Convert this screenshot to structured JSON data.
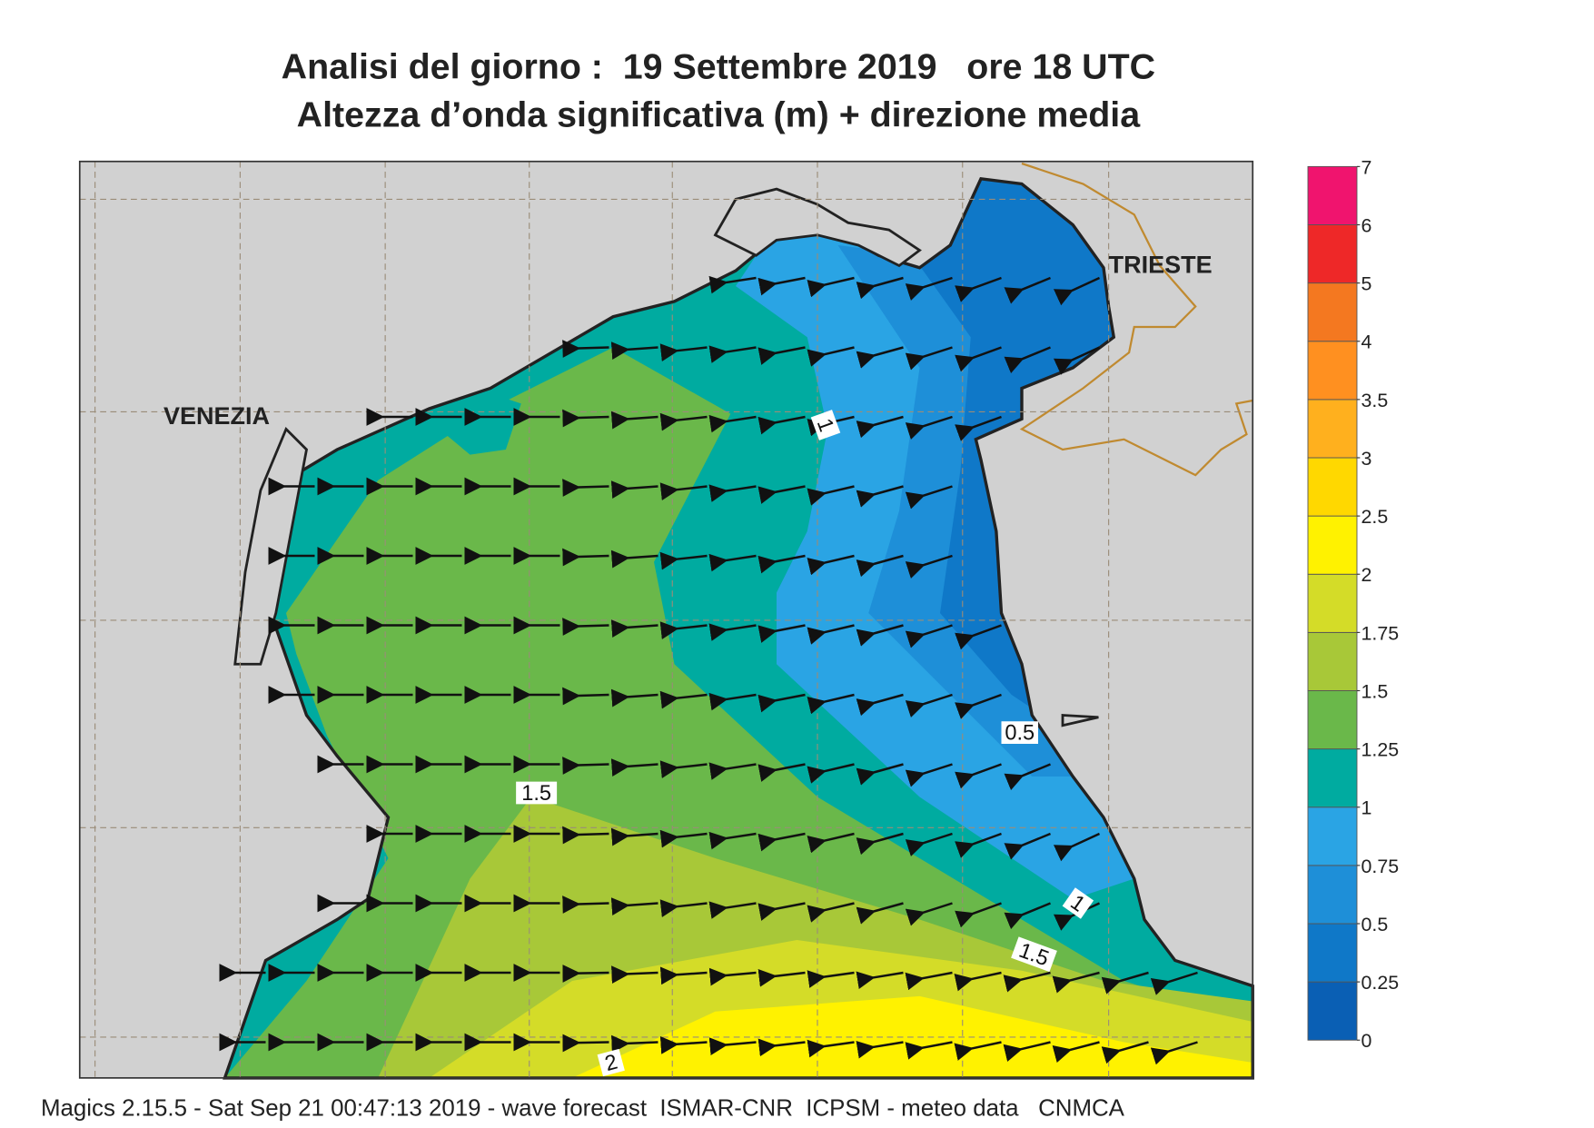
{
  "title": [
    "Analisi del giorno :  19 Settembre 2019   ore 18 UTC",
    "Altezza d’onda significativa (m) + direzione media"
  ],
  "places": [
    {
      "label": "VENEZIA"
    },
    {
      "label": "TRIESTE"
    }
  ],
  "contour_labels": [
    {
      "text": "1"
    },
    {
      "text": "0.5"
    },
    {
      "text": "1.5"
    },
    {
      "text": "1"
    },
    {
      "text": "1.5"
    },
    {
      "text": "2"
    }
  ],
  "colorbar": {
    "levels": [
      0,
      0.25,
      0.5,
      0.75,
      1,
      1.25,
      1.5,
      1.75,
      2,
      2.5,
      3,
      3.5,
      4,
      5,
      6,
      7
    ],
    "colors": [
      "#0a5fb4",
      "#0f78c8",
      "#1e8fd8",
      "#2aa4e4",
      "#00aba0",
      "#6ab84a",
      "#a8c838",
      "#d4dc28",
      "#fff200",
      "#ffd800",
      "#ffb01e",
      "#ff9020",
      "#f47820",
      "#ee2828",
      "#f0146e"
    ]
  },
  "footer": "Magics 2.15.5 - Sat Sep 21 00:47:13 2019 - wave forecast  ISMAR-CNR  ICPSM - meteo data   CNMCA"
}
